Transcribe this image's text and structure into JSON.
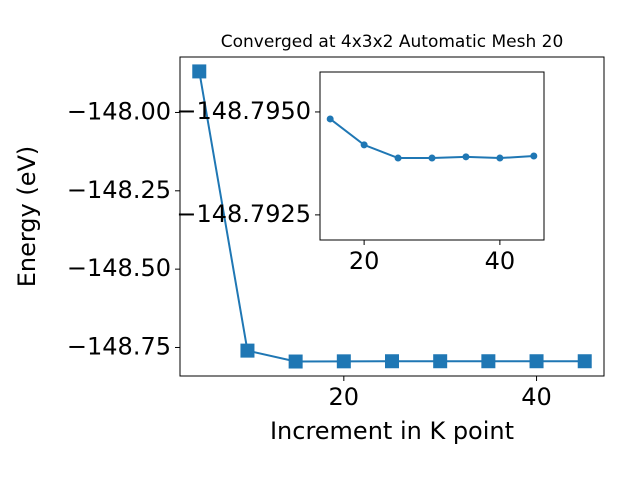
{
  "chart_data": [
    {
      "type": "line",
      "title": "Converged at 4x3x2 Automatic Mesh 20",
      "x_label": "Increment in K point",
      "y_label": "Energy (eV)",
      "series": [
        {
          "color": "#1f77b4",
          "marker": "square",
          "x": [
            5,
            10,
            15,
            20,
            25,
            30,
            35,
            40,
            45
          ],
          "values": [
            -147.869,
            -148.76,
            -148.7948,
            -148.7942,
            -148.7939,
            -148.7939,
            -148.7939,
            -148.7939,
            -148.7939
          ]
        }
      ],
      "xlim": [
        3,
        47
      ],
      "xticks": [
        20,
        40
      ],
      "ylim": [
        -148.841,
        -147.823
      ],
      "yticks": [
        {
          "value": -148.75,
          "label": "−148.75"
        },
        {
          "value": -148.5,
          "label": "−148.50"
        },
        {
          "value": -148.25,
          "label": "−148.25"
        },
        {
          "value": -148.0,
          "label": "−148.00"
        }
      ]
    },
    {
      "type": "line",
      "series": [
        {
          "color": "#1f77b4",
          "marker": "circle",
          "x": [
            15,
            20,
            25,
            30,
            35,
            40,
            45
          ],
          "values": [
            -148.79483,
            -148.7942,
            -148.79388,
            -148.79388,
            -148.79391,
            -148.79388,
            -148.79393
          ]
        }
      ],
      "xlim": [
        13.5,
        46.5
      ],
      "xticks": [
        20,
        40
      ],
      "ylim": [
        -148.79189,
        -148.79597
      ],
      "yticks": [
        {
          "value": -148.7925,
          "label": "−148.7925"
        },
        {
          "value": -148.795,
          "label": "−148.7950"
        }
      ]
    }
  ]
}
